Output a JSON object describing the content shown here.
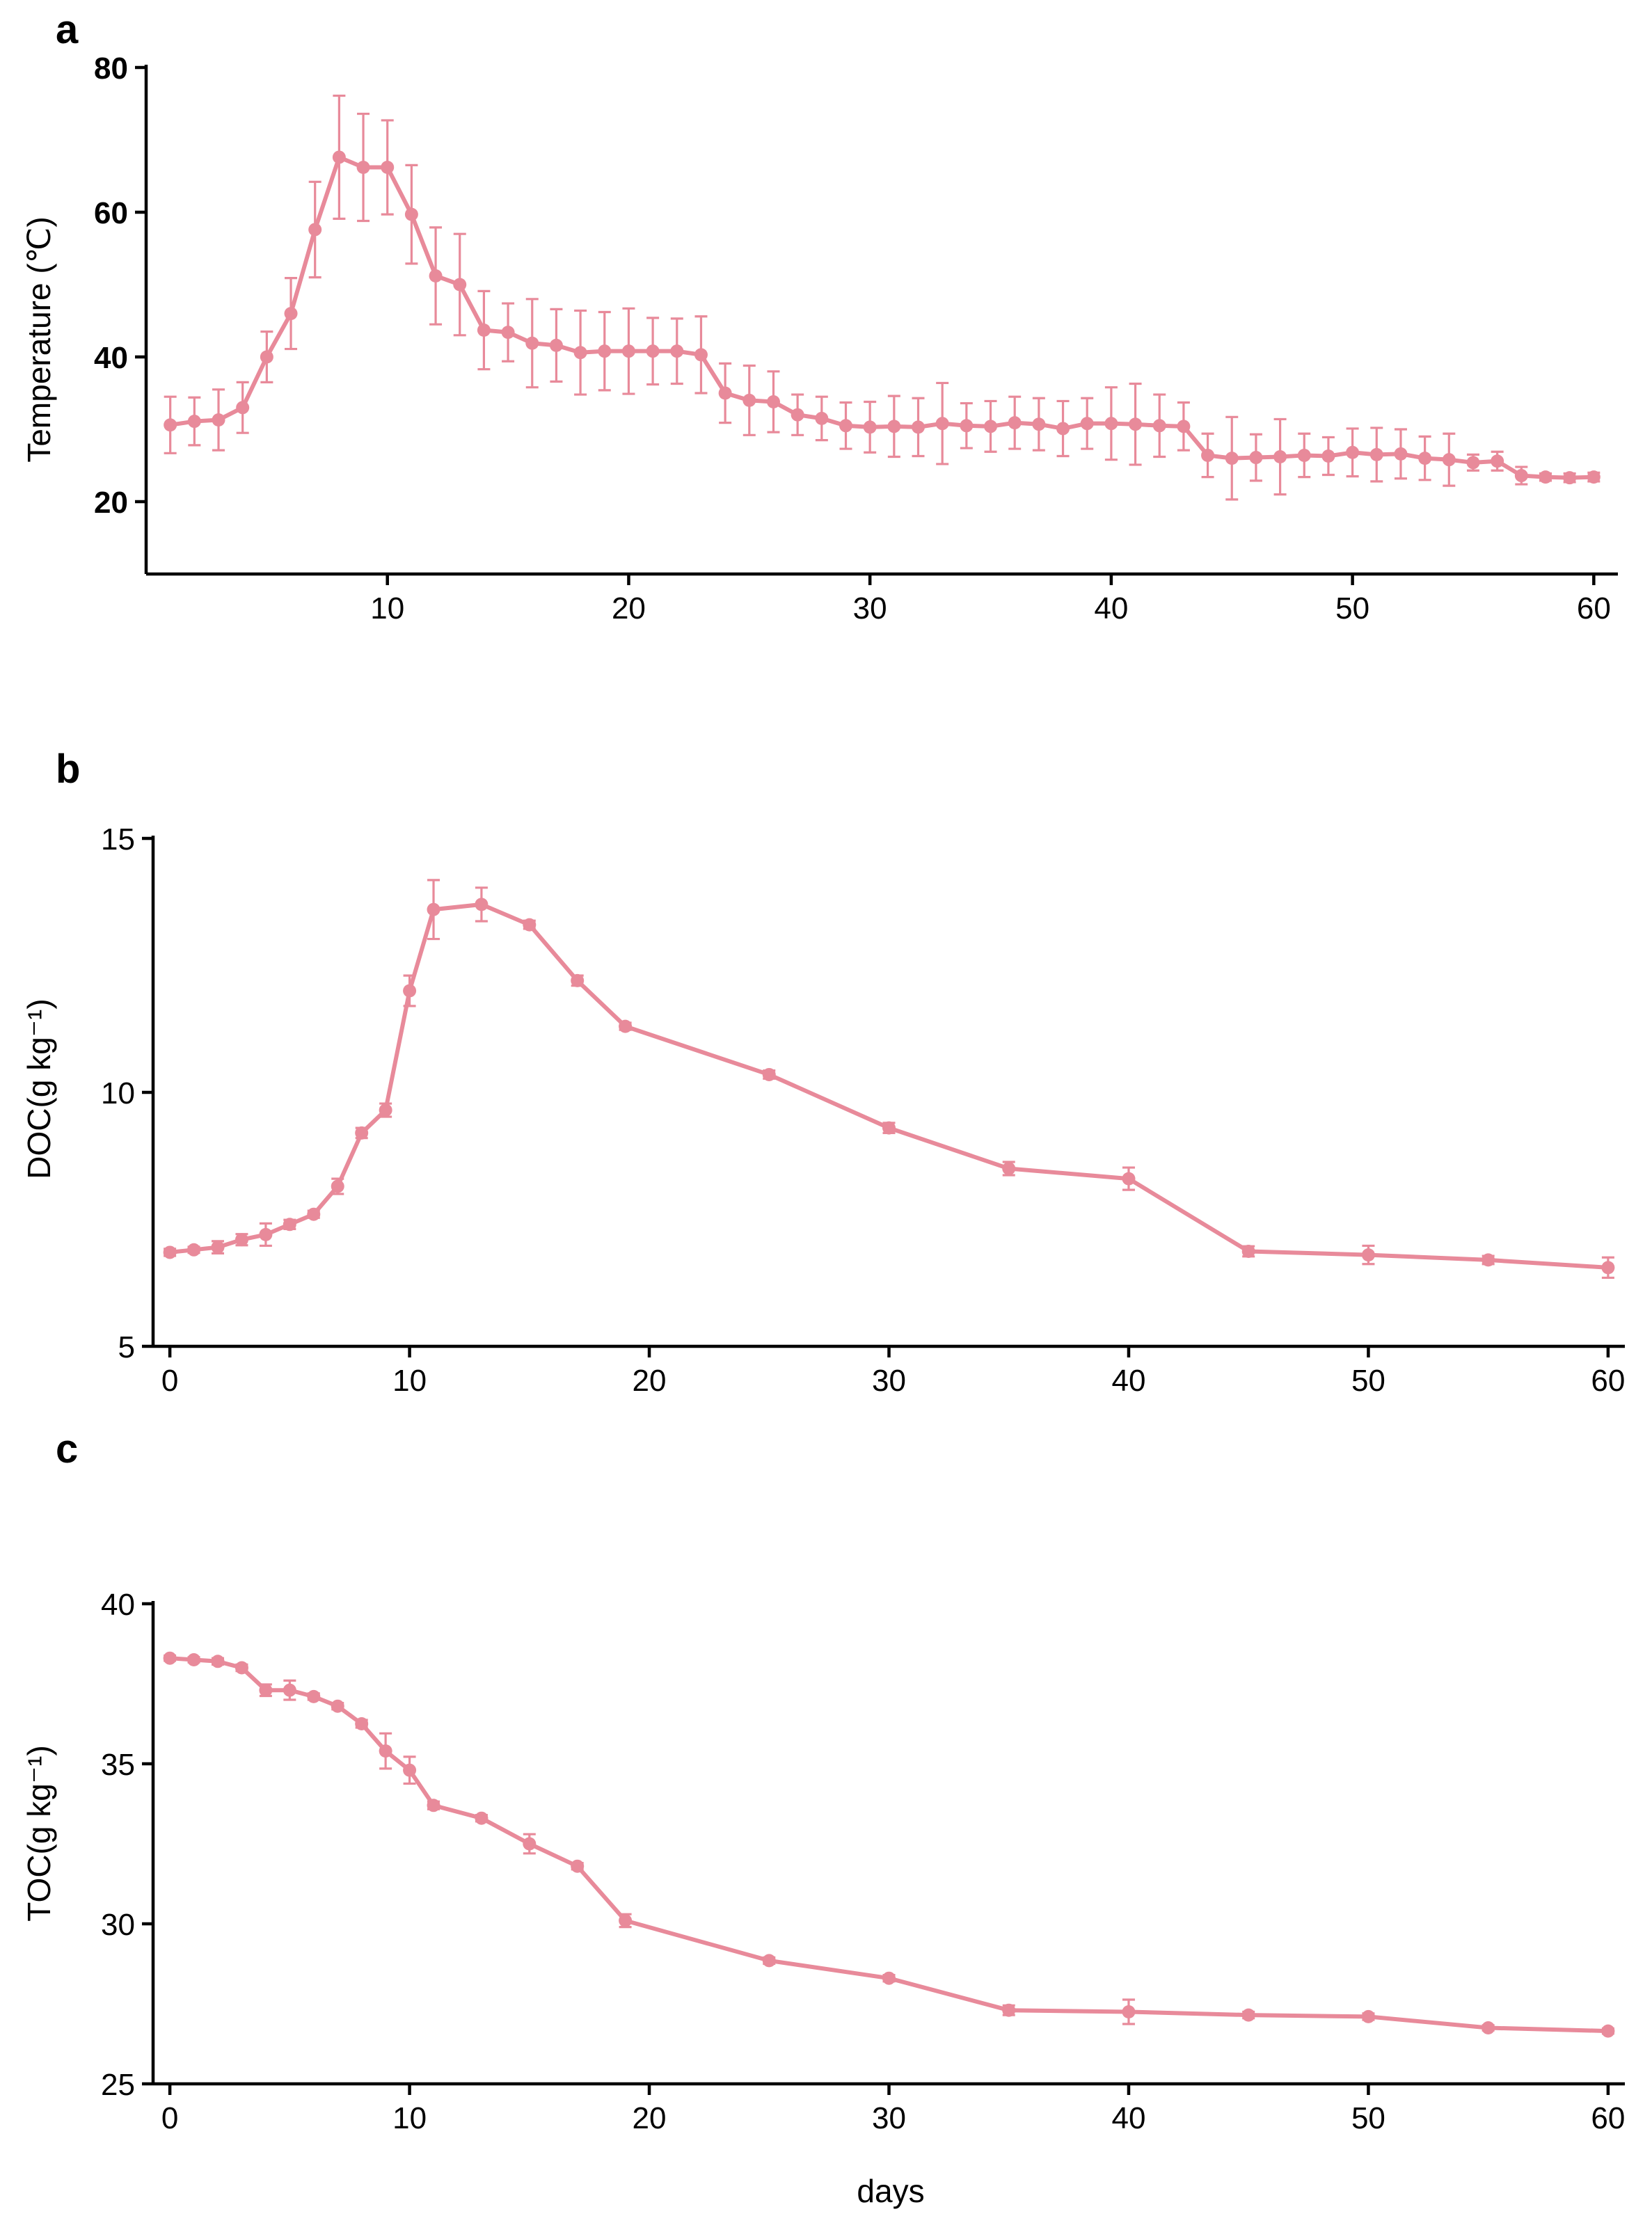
{
  "series_color": "#e88a9a",
  "xlabel_bottom": "days",
  "chart_data": [
    {
      "panel": "a",
      "type": "line",
      "ylabel": "Temperature (℃)",
      "xlim": [
        0,
        61
      ],
      "ylim": [
        10,
        80
      ],
      "xticks": [
        10,
        20,
        30,
        40,
        50,
        60
      ],
      "yticks": [
        20,
        40,
        60,
        80
      ],
      "x": [
        1,
        2,
        3,
        4,
        5,
        6,
        7,
        8,
        9,
        10,
        11,
        12,
        13,
        14,
        15,
        16,
        17,
        18,
        19,
        20,
        21,
        22,
        23,
        24,
        25,
        26,
        27,
        28,
        29,
        30,
        31,
        32,
        33,
        34,
        35,
        36,
        37,
        38,
        39,
        40,
        41,
        42,
        43,
        44,
        45,
        46,
        47,
        48,
        49,
        50,
        51,
        52,
        53,
        54,
        55,
        56,
        57,
        58,
        59,
        60
      ],
      "values": [
        30.6,
        31.1,
        31.3,
        33.0,
        40.0,
        46.0,
        57.6,
        67.6,
        66.2,
        66.2,
        59.7,
        51.2,
        50.0,
        43.7,
        43.4,
        41.9,
        41.6,
        40.6,
        40.8,
        40.8,
        40.8,
        40.8,
        40.3,
        35.0,
        34.0,
        33.8,
        32.0,
        31.5,
        30.5,
        30.3,
        30.4,
        30.3,
        30.8,
        30.5,
        30.4,
        30.9,
        30.7,
        30.1,
        30.8,
        30.8,
        30.7,
        30.5,
        30.4,
        26.4,
        26.0,
        26.1,
        26.2,
        26.4,
        26.3,
        26.8,
        26.5,
        26.6,
        26.0,
        25.8,
        25.4,
        25.6,
        23.6,
        23.4,
        23.3,
        23.4
      ],
      "errors": [
        3.9,
        3.3,
        4.2,
        3.5,
        3.5,
        4.9,
        6.6,
        8.5,
        7.4,
        6.5,
        6.8,
        6.7,
        7.0,
        5.4,
        4.0,
        6.1,
        5.0,
        5.8,
        5.4,
        5.9,
        4.6,
        4.5,
        5.3,
        4.1,
        4.8,
        4.2,
        2.8,
        3.0,
        3.2,
        3.5,
        4.2,
        4.0,
        5.6,
        3.1,
        3.5,
        3.6,
        3.6,
        3.8,
        3.5,
        5.0,
        5.6,
        4.3,
        3.3,
        3.0,
        5.7,
        3.2,
        5.2,
        3.0,
        2.6,
        3.3,
        3.7,
        3.4,
        3.0,
        3.6,
        1.1,
        1.3,
        1.2,
        0.5,
        0.6,
        0.6
      ]
    },
    {
      "panel": "b",
      "type": "line",
      "ylabel": "DOC(g kg⁻¹)",
      "xlim": [
        -0.7,
        60.7
      ],
      "ylim": [
        5,
        15
      ],
      "xticks": [
        0,
        10,
        20,
        30,
        40,
        50,
        60
      ],
      "yticks": [
        5,
        10,
        15
      ],
      "x": [
        0,
        1,
        2,
        3,
        4,
        5,
        6,
        7,
        8,
        9,
        10,
        11,
        13,
        15,
        17,
        19,
        25,
        30,
        35,
        40,
        45,
        50,
        55,
        60
      ],
      "values": [
        6.85,
        6.9,
        6.95,
        7.1,
        7.2,
        7.4,
        7.6,
        8.15,
        9.2,
        9.65,
        12.0,
        13.6,
        13.7,
        13.3,
        12.2,
        11.3,
        10.35,
        9.3,
        8.5,
        8.3,
        6.87,
        6.8,
        6.7,
        6.55
      ],
      "errors": [
        0.07,
        0.06,
        0.12,
        0.11,
        0.22,
        0.09,
        0.07,
        0.15,
        0.1,
        0.13,
        0.3,
        0.58,
        0.33,
        0.08,
        0.1,
        0.07,
        0.08,
        0.1,
        0.13,
        0.22,
        0.1,
        0.18,
        0.08,
        0.2
      ]
    },
    {
      "panel": "c",
      "type": "line",
      "ylabel": "TOC(g kg⁻¹)",
      "xlim": [
        -0.7,
        60.7
      ],
      "ylim": [
        25,
        40
      ],
      "xticks": [
        0,
        10,
        20,
        30,
        40,
        50,
        60
      ],
      "yticks": [
        25,
        30,
        35,
        40
      ],
      "x": [
        0,
        1,
        2,
        3,
        4,
        5,
        6,
        7,
        8,
        9,
        10,
        11,
        13,
        15,
        17,
        19,
        25,
        30,
        35,
        40,
        45,
        50,
        55,
        60
      ],
      "values": [
        38.3,
        38.25,
        38.2,
        38.0,
        37.3,
        37.3,
        37.1,
        36.8,
        36.25,
        35.4,
        34.8,
        33.7,
        33.3,
        32.5,
        31.8,
        30.1,
        28.85,
        28.3,
        27.3,
        27.25,
        27.15,
        27.1,
        26.75,
        26.65
      ],
      "errors": [
        0.08,
        0.08,
        0.1,
        0.1,
        0.18,
        0.3,
        0.1,
        0.1,
        0.12,
        0.55,
        0.42,
        0.12,
        0.1,
        0.3,
        0.1,
        0.2,
        0.1,
        0.1,
        0.15,
        0.38,
        0.1,
        0.1,
        0.08,
        0.08
      ]
    }
  ]
}
